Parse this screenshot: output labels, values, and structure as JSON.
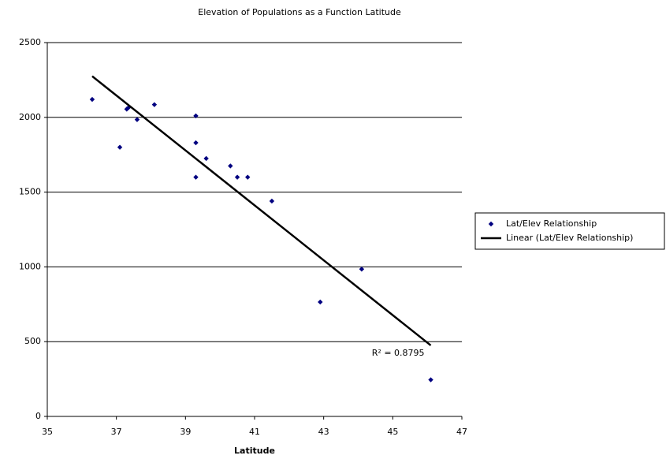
{
  "chart_data": {
    "type": "scatter",
    "title": "Elevation of Populations as a Function Latitude",
    "x_label": "Latitude",
    "xlim": [
      35,
      47
    ],
    "xticks": [
      35,
      37,
      39,
      41,
      43,
      45,
      47
    ],
    "ylim": [
      0,
      2500
    ],
    "yticks": [
      0,
      500,
      1000,
      1500,
      2000,
      2500
    ],
    "grid": true,
    "legend": "right",
    "series": [
      {
        "name": "Lat/Elev Relationship",
        "color": "#000080",
        "x": [
          36.3,
          37.1,
          37.3,
          37.35,
          37.6,
          38.1,
          39.3,
          39.3,
          39.3,
          39.6,
          40.3,
          40.5,
          40.8,
          41.5,
          42.9,
          44.1,
          46.1
        ],
        "values": [
          2120,
          1800,
          2055,
          2065,
          1985,
          2085,
          2010,
          1830,
          1600,
          1725,
          1675,
          1600,
          1600,
          1440,
          765,
          985,
          245
        ]
      }
    ],
    "trendline": {
      "name": "Linear (Lat/Elev Relationship)",
      "color": "#000000",
      "x": [
        36.3,
        46.1
      ],
      "y": [
        2275,
        475
      ],
      "r2_label": "R² = 0.8795"
    }
  }
}
